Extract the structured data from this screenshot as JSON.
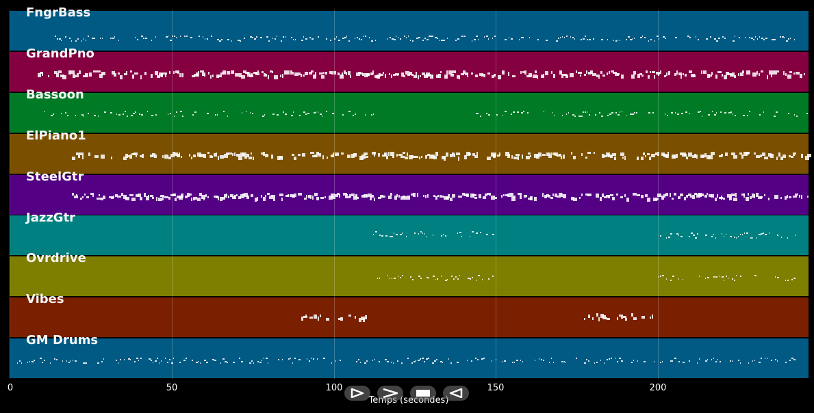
{
  "tracks": [
    {
      "name": "FngrBass",
      "color": "#005a84"
    },
    {
      "name": "GrandPno",
      "color": "#840040"
    },
    {
      "name": "Bassoon",
      "color": "#007a24"
    },
    {
      "name": "ElPiano1",
      "color": "#7a5000"
    },
    {
      "name": "SteelGtr",
      "color": "#540084"
    },
    {
      "name": "JazzGtr",
      "color": "#008080"
    },
    {
      "name": "Ovrdrive",
      "color": "#7e7e00"
    },
    {
      "name": "Vibes",
      "color": "#7a2000"
    },
    {
      "name": "GM Drums",
      "color": "#005a84"
    }
  ],
  "x_axis": {
    "label": "Temps (secondes)",
    "ticks": [
      "0",
      "50",
      "100",
      "150",
      "200"
    ],
    "range": [
      0,
      247
    ]
  },
  "transport": [
    "play-icon",
    "fast-forward-icon",
    "stop-icon",
    "rewind-icon"
  ]
}
